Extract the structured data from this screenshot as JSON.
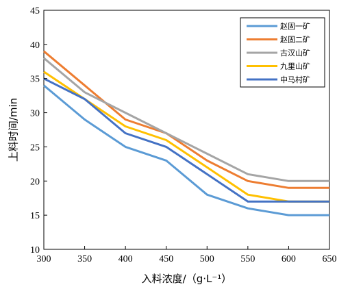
{
  "chart_data": {
    "type": "line",
    "title": "",
    "xlabel": "入料浓度/（g·L⁻¹）",
    "ylabel": "上料时间/min",
    "x": [
      300,
      350,
      400,
      450,
      500,
      550,
      600,
      650
    ],
    "xlim": [
      300,
      650
    ],
    "ylim": [
      10,
      45
    ],
    "xticks": [
      300,
      350,
      400,
      450,
      500,
      550,
      600,
      650
    ],
    "yticks": [
      10,
      15,
      20,
      25,
      30,
      35,
      40,
      45
    ],
    "grid": false,
    "legend_position": "top-right",
    "series": [
      {
        "name": "赵固一矿",
        "color": "#5B9BD5",
        "values": [
          34,
          29,
          25,
          23,
          18,
          16,
          15,
          15
        ]
      },
      {
        "name": "赵固二矿",
        "color": "#ED7D31",
        "values": [
          39,
          34,
          29,
          27,
          23,
          20,
          19,
          19
        ]
      },
      {
        "name": "古汉山矿",
        "color": "#A5A5A5",
        "values": [
          38,
          33,
          30,
          27,
          24,
          21,
          20,
          20
        ]
      },
      {
        "name": "九里山矿",
        "color": "#FFC000",
        "values": [
          36,
          32,
          28,
          26,
          22,
          18,
          17,
          17
        ]
      },
      {
        "name": "中马村矿",
        "color": "#4472C4",
        "values": [
          35,
          32,
          27,
          25,
          21,
          17,
          17,
          17
        ]
      }
    ]
  }
}
